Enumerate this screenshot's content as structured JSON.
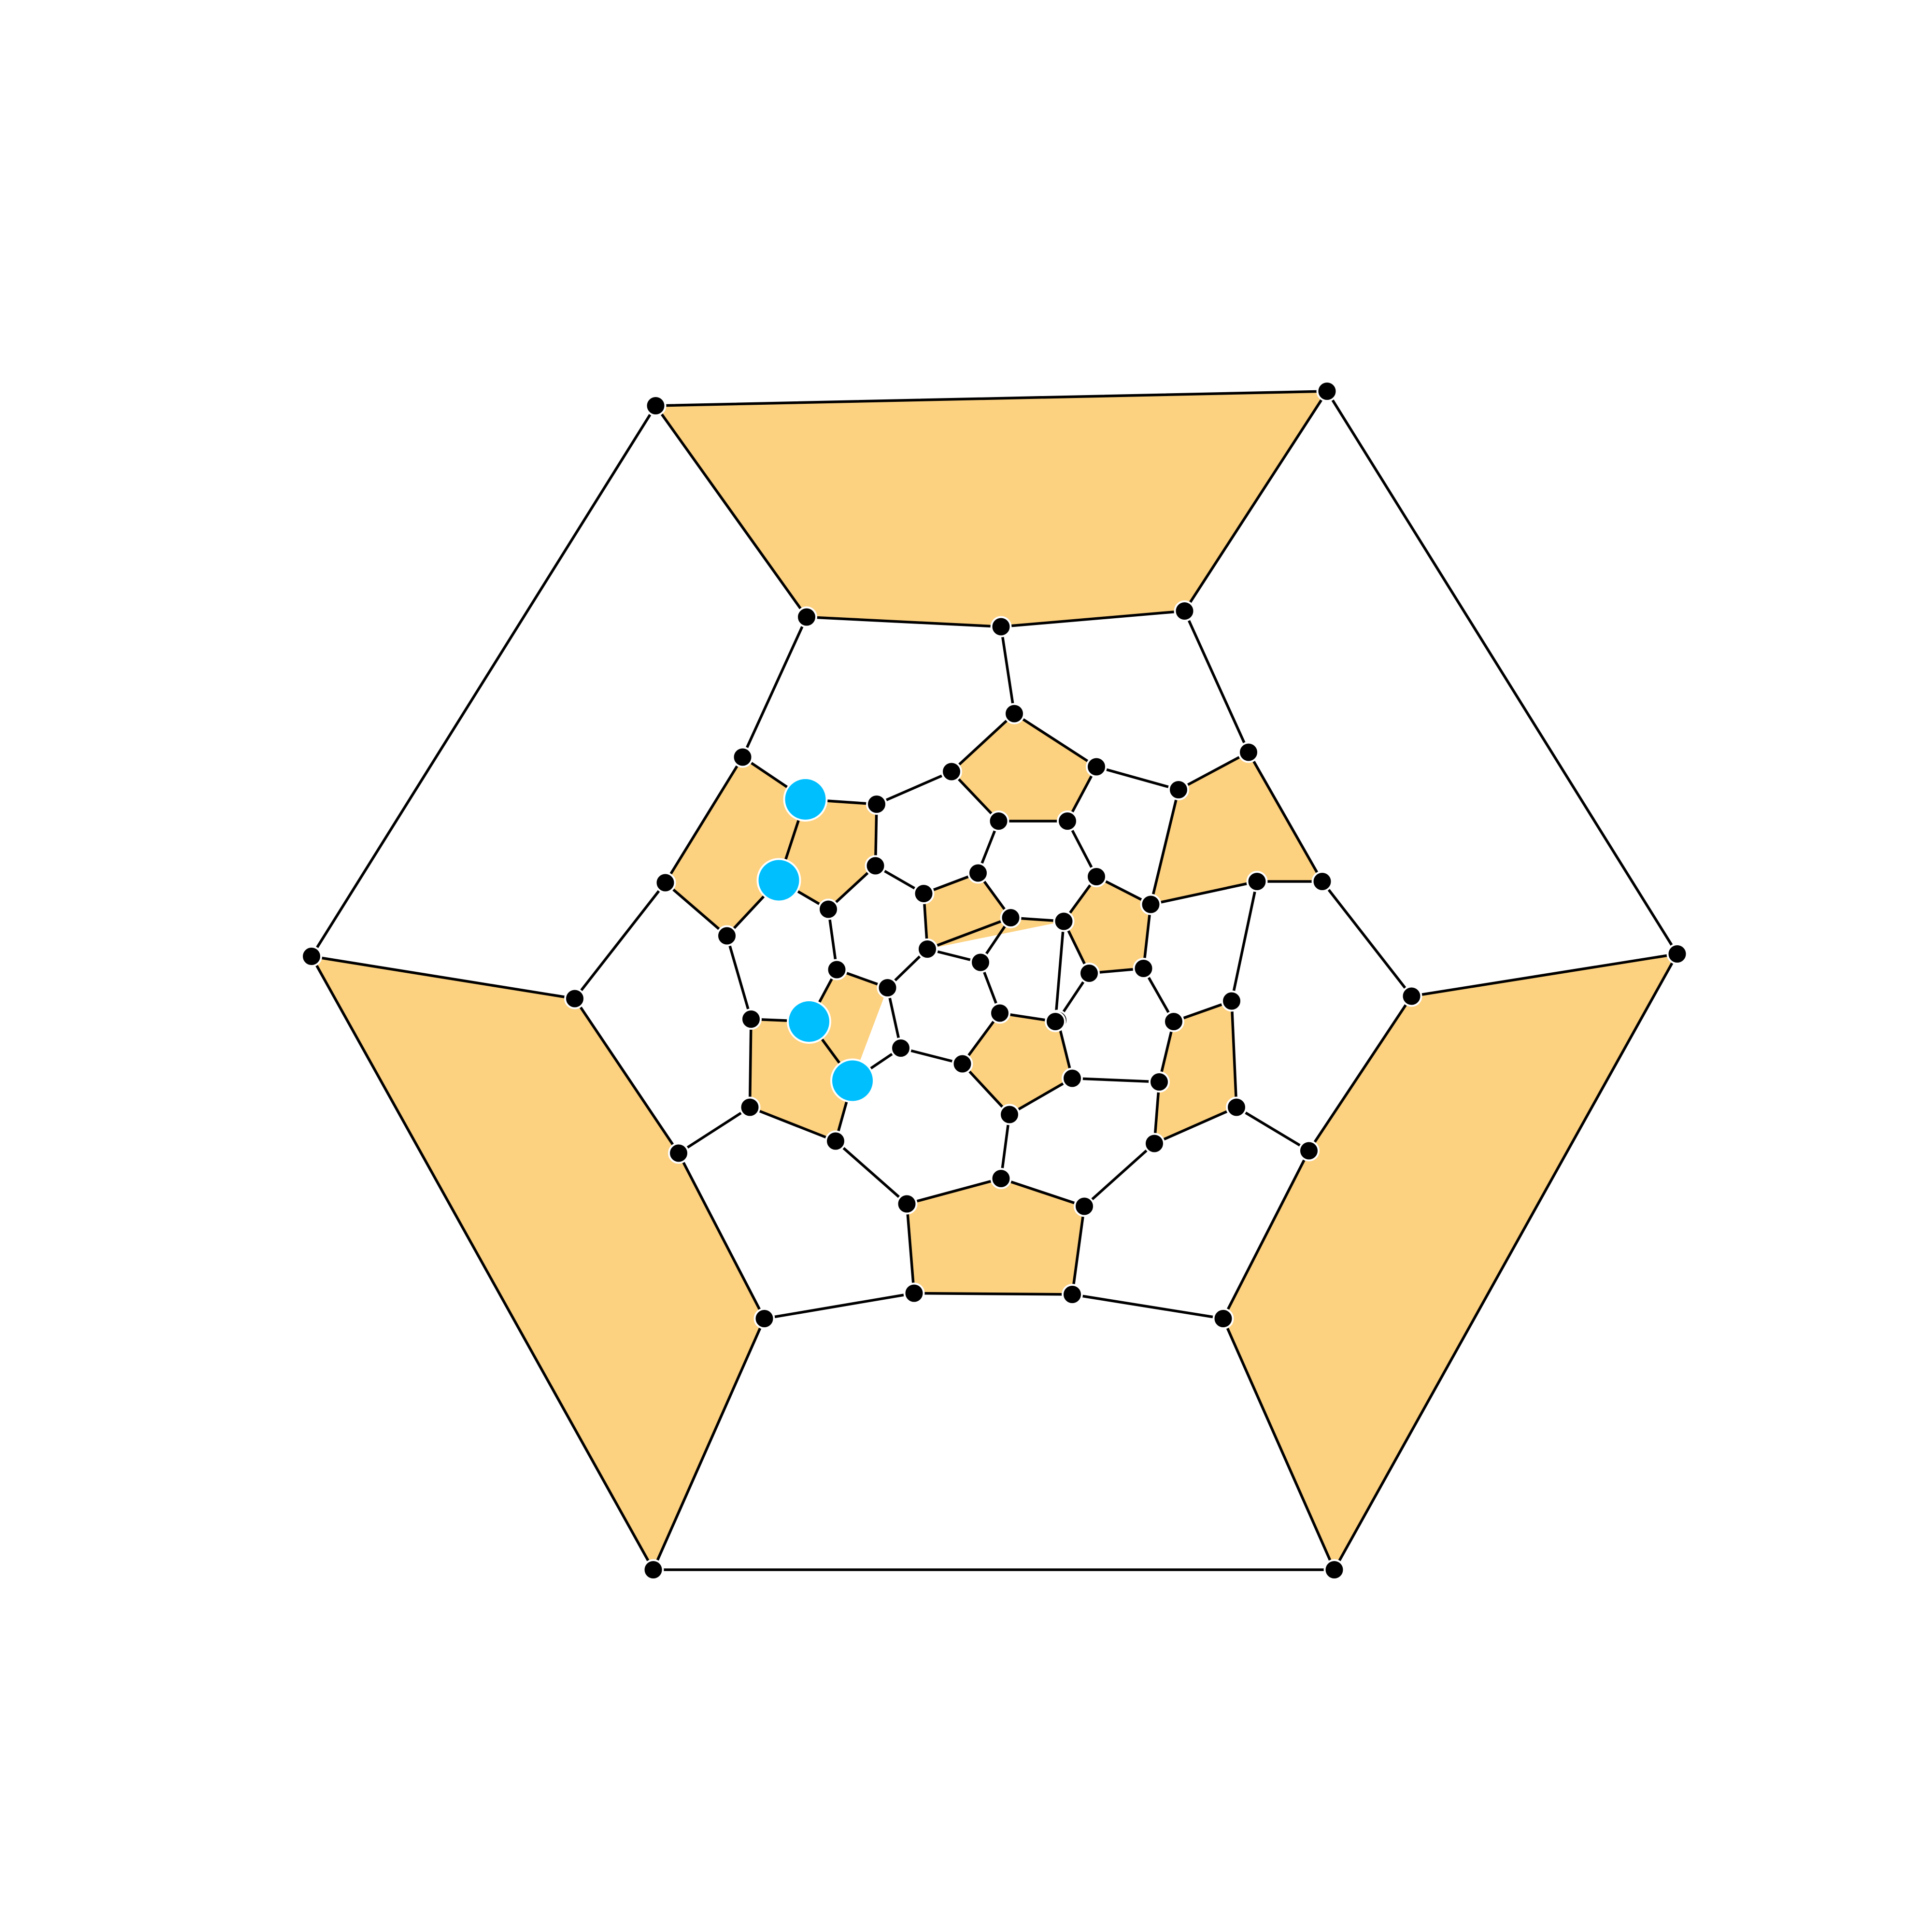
{
  "colors": {
    "background": "#ffffff",
    "face_fill": "#fcd17f",
    "edge": "#000000",
    "vertex": "#000000",
    "highlight_vertex": "#00bfff"
  },
  "graph": {
    "vertex_count": 60,
    "shaded_face_count": 12,
    "highlighted_vertex_count": 4
  }
}
